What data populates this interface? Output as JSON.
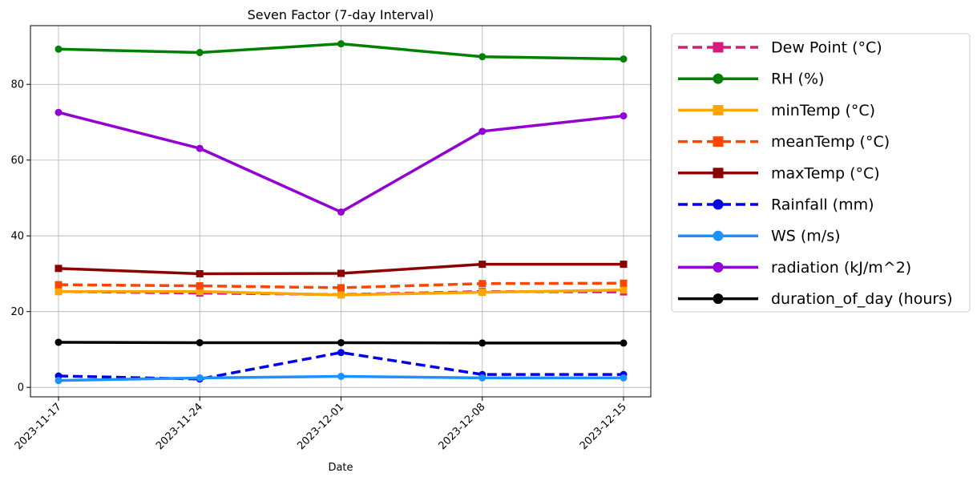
{
  "chart_data": {
    "type": "line",
    "title": "Seven Factor (7-day Interval)",
    "xlabel": "Date",
    "ylabel": "",
    "x": [
      "2023-11-17",
      "2023-11-24",
      "2023-12-01",
      "2023-12-08",
      "2023-12-15"
    ],
    "ylim": [
      -2.5,
      95.5
    ],
    "yticks": [
      0,
      20,
      40,
      60,
      80
    ],
    "grid": true,
    "legend_position": "outside-right-top",
    "series": [
      {
        "name": "Dew Point (°C)",
        "color": "#d81b7a",
        "linestyle": "dashed",
        "marker": "square",
        "values": [
          25.3,
          24.9,
          24.5,
          25.3,
          25.2
        ]
      },
      {
        "name": "RH (%)",
        "color": "#008000",
        "linestyle": "solid",
        "marker": "circle",
        "values": [
          89.3,
          88.4,
          90.7,
          87.3,
          86.7
        ]
      },
      {
        "name": "minTemp (°C)",
        "color": "#ffa500",
        "linestyle": "solid",
        "marker": "square",
        "values": [
          25.3,
          25.3,
          24.4,
          25.1,
          25.7
        ]
      },
      {
        "name": "meanTemp (°C)",
        "color": "#ff4500",
        "linestyle": "dashed",
        "marker": "square",
        "values": [
          27.1,
          26.8,
          26.3,
          27.4,
          27.5
        ]
      },
      {
        "name": "maxTemp (°C)",
        "color": "#8b0000",
        "linestyle": "solid",
        "marker": "square",
        "values": [
          31.4,
          30.0,
          30.1,
          32.5,
          32.5
        ]
      },
      {
        "name": "Rainfall (mm)",
        "color": "#0000e6",
        "linestyle": "dashed",
        "marker": "circle",
        "values": [
          3.0,
          2.2,
          9.2,
          3.4,
          3.4
        ]
      },
      {
        "name": "WS (m/s)",
        "color": "#1e90ff",
        "linestyle": "solid",
        "marker": "circle",
        "values": [
          1.8,
          2.5,
          2.9,
          2.5,
          2.5
        ]
      },
      {
        "name": "radiation (kJ/m^2)",
        "color": "#9400d3",
        "linestyle": "solid",
        "marker": "circle",
        "values": [
          72.6,
          63.1,
          46.3,
          67.6,
          71.7
        ]
      },
      {
        "name": "duration_of_day (hours)",
        "color": "#000000",
        "linestyle": "solid",
        "marker": "circle",
        "values": [
          11.9,
          11.8,
          11.8,
          11.7,
          11.7
        ]
      }
    ]
  }
}
